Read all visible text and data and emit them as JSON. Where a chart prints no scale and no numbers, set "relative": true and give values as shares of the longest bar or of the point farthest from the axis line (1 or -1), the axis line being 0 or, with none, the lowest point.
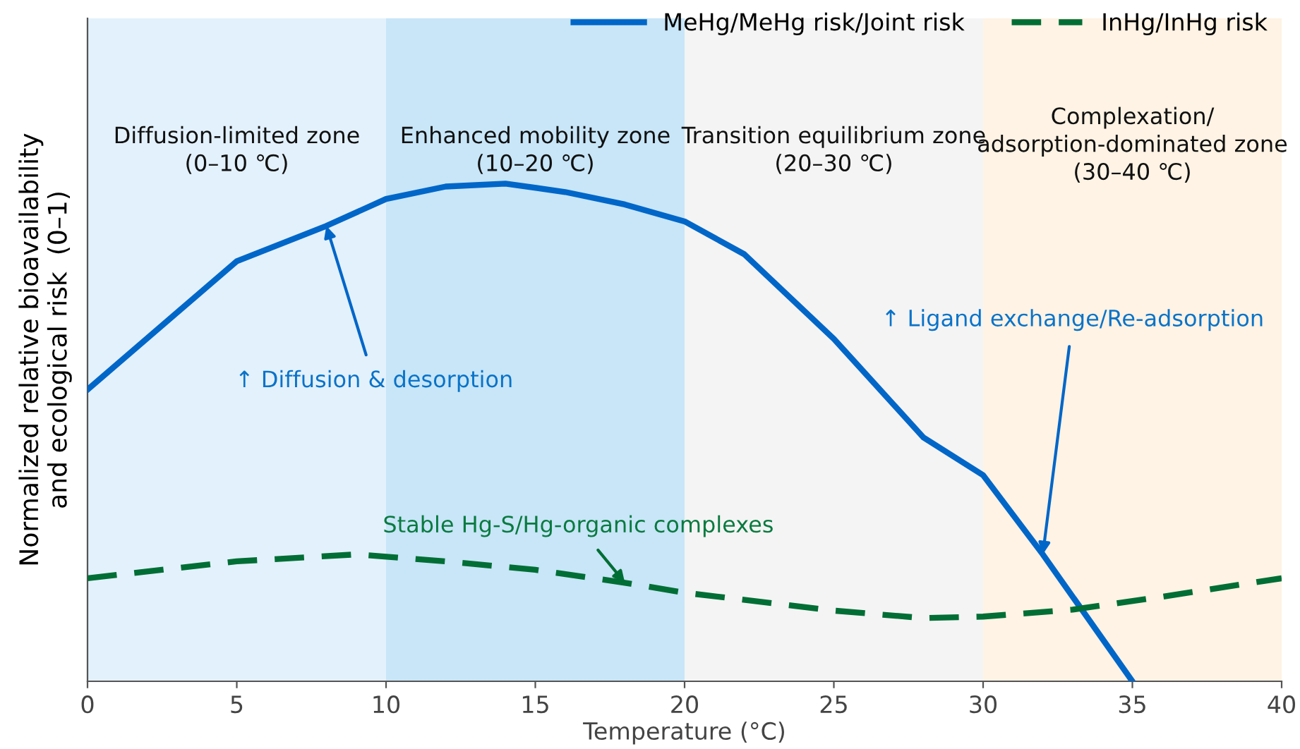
{
  "chart_data": {
    "type": "line",
    "xlabel": "Temperature (°C)",
    "ylabel": "Normalized relative bioavailability\nand ecological risk  (0–1)",
    "relative": true,
    "xlim": [
      0,
      40
    ],
    "xticks": [
      0,
      5,
      10,
      15,
      20,
      25,
      30,
      35,
      40
    ],
    "tick_labels": "x",
    "grid": false,
    "legend": "top right",
    "series": [
      {
        "name": "MeHg/MeHg risk/Joint risk",
        "color": "#0066c8",
        "line_style": "solid",
        "x": [
          0,
          5,
          8,
          10,
          12,
          14,
          16,
          18,
          20,
          22,
          25,
          28,
          30,
          32,
          34,
          35
        ],
        "values": [
          0.586,
          0.844,
          0.915,
          0.969,
          0.994,
          1.0,
          0.983,
          0.958,
          0.924,
          0.858,
          0.688,
          0.49,
          0.414,
          0.255,
          0.085,
          0
        ]
      },
      {
        "name": "InHg/InHg risk",
        "color": "#006e35",
        "line_style": "dashed",
        "x": [
          0,
          5,
          9,
          12,
          15,
          18,
          20,
          25,
          28,
          30,
          33,
          36,
          40
        ],
        "values": [
          0.207,
          0.241,
          0.255,
          0.241,
          0.224,
          0.198,
          0.178,
          0.142,
          0.127,
          0.13,
          0.144,
          0.17,
          0.207
        ]
      }
    ],
    "bands": [
      {
        "axis": "x",
        "from": 0,
        "to": 10,
        "label": "Diffusion-limited zone\n(0–10 ℃)",
        "color": "#e3f1fc"
      },
      {
        "axis": "x",
        "from": 10,
        "to": 20,
        "label": "Enhanced mobility zone\n(10–20 ℃)",
        "color": "#c8e6f8"
      },
      {
        "axis": "x",
        "from": 20,
        "to": 30,
        "label": "Transition equilibrium zone\n(20–30 ℃)",
        "color": "#f4f4f4"
      },
      {
        "axis": "x",
        "from": 30,
        "to": 40,
        "label": "Complexation/\nadsorption-dominated zone\n(30–40 ℃)",
        "color": "#fef3e4"
      }
    ],
    "annotations": [
      {
        "text": "↑ Diffusion & desorption",
        "x": 8,
        "y": 0.915
      },
      {
        "text": "Stable Hg-S/Hg-organic complexes",
        "x": 18,
        "y": 0.198
      },
      {
        "text": "↑ Ligand exchange/Re-adsorption",
        "x": 32,
        "y": 0.255
      }
    ]
  }
}
